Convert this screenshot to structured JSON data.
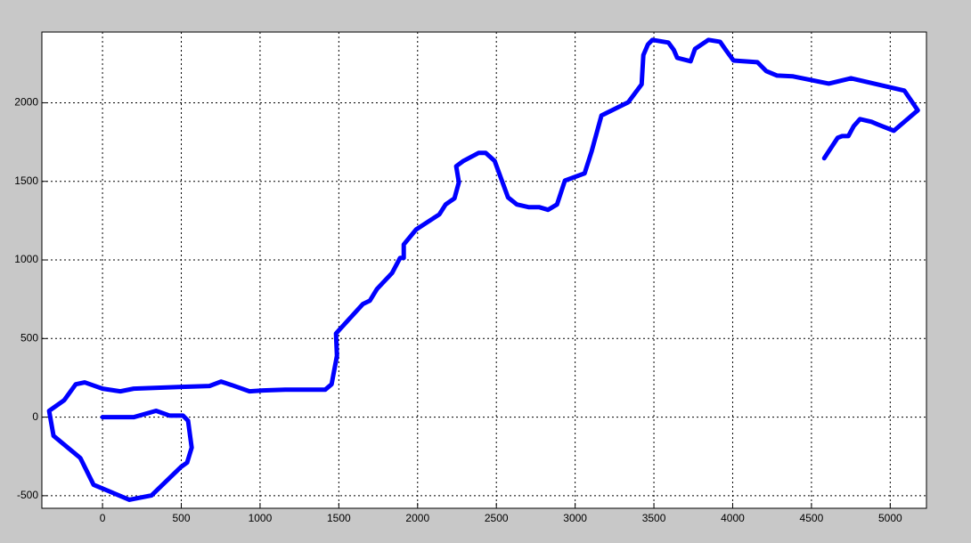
{
  "chart_data": {
    "type": "line",
    "color": "#0000ff",
    "grid": true,
    "x": [
      0,
      200,
      340,
      425,
      510,
      543,
      566,
      537,
      498,
      311,
      170,
      -57,
      -141,
      -311,
      -339,
      -243,
      -170,
      -113,
      0,
      113,
      198,
      481,
      679,
      752,
      820,
      933,
      1018,
      1160,
      1414,
      1454,
      1488,
      1482,
      1652,
      1697,
      1742,
      1838,
      1889,
      1912,
      1912,
      1991,
      2138,
      2178,
      2234,
      2262,
      2245,
      2291,
      2387,
      2432,
      2489,
      2574,
      2630,
      2704,
      2771,
      2828,
      2885,
      2935,
      3060,
      3105,
      3167,
      3337,
      3422,
      3433,
      3462,
      3490,
      3592,
      3626,
      3648,
      3733,
      3761,
      3846,
      3920,
      3959,
      4005,
      4157,
      4214,
      4282,
      4383,
      4610,
      4751,
      5090,
      5175,
      5023,
      4921,
      4881,
      4808,
      4768,
      4734,
      4695,
      4666,
      4581
    ],
    "values": [
      0,
      0,
      40,
      10,
      10,
      -23,
      -194,
      -289,
      -317,
      -498,
      -526,
      -430,
      -260,
      -119,
      40,
      108,
      209,
      221,
      181,
      164,
      181,
      192,
      198,
      226,
      204,
      164,
      170,
      175,
      175,
      209,
      390,
      532,
      719,
      741,
      815,
      917,
      1013,
      1013,
      1098,
      1194,
      1290,
      1353,
      1392,
      1494,
      1596,
      1630,
      1681,
      1681,
      1630,
      1398,
      1353,
      1336,
      1336,
      1319,
      1353,
      1505,
      1551,
      1692,
      1919,
      2003,
      2117,
      2303,
      2371,
      2400,
      2383,
      2337,
      2286,
      2264,
      2343,
      2400,
      2388,
      2332,
      2269,
      2258,
      2201,
      2173,
      2168,
      2122,
      2156,
      2077,
      1952,
      1822,
      1862,
      1879,
      1896,
      1851,
      1788,
      1788,
      1777,
      1647
    ],
    "xlim": [
      -385,
      5230
    ],
    "ylim": [
      -580,
      2450
    ],
    "xticks": [
      0,
      500,
      1000,
      1500,
      2000,
      2500,
      3000,
      3500,
      4000,
      4500,
      5000
    ],
    "yticks": [
      -500,
      0,
      500,
      1000,
      1500,
      2000
    ]
  }
}
